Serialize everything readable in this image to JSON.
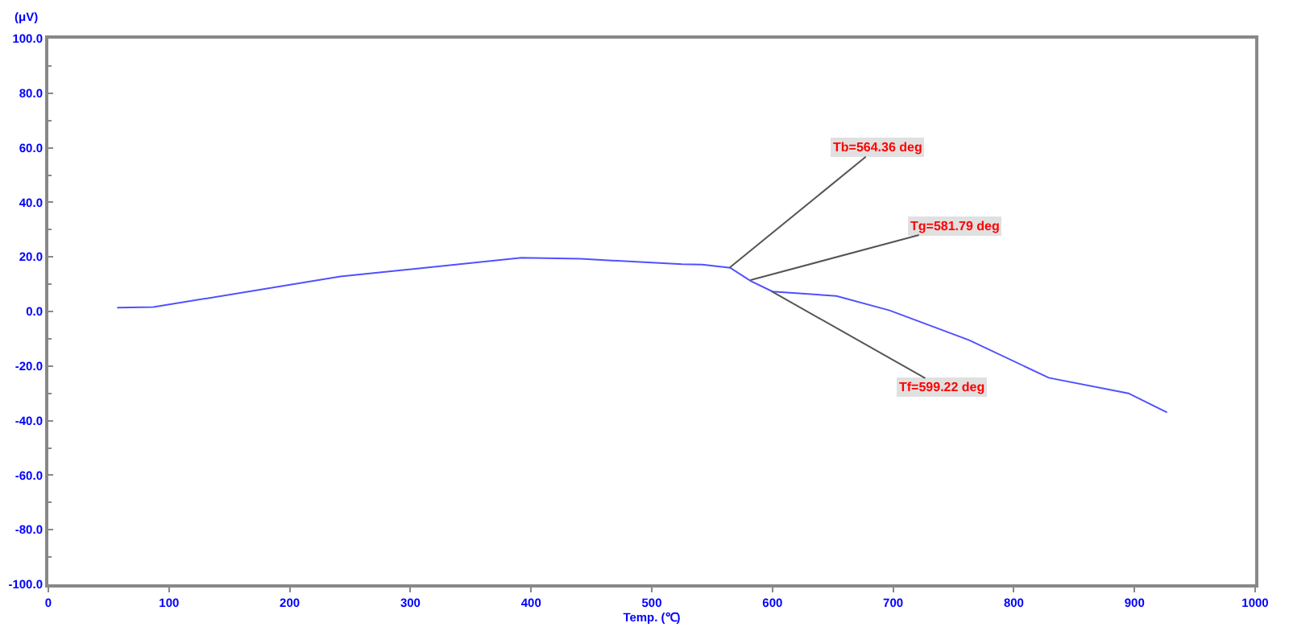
{
  "chart_data": {
    "type": "line",
    "xlabel": "Temp. (℃)",
    "ylabel": "(μV)",
    "x": [
      57,
      87,
      242,
      392,
      441,
      525,
      542,
      565,
      582,
      600,
      653,
      697,
      763,
      829,
      895,
      927
    ],
    "series": [
      {
        "color": "#5050ff",
        "values": [
          1.4,
          1.6,
          12.8,
          19.7,
          19.3,
          17.3,
          17.2,
          16.0,
          11.2,
          7.3,
          5.7,
          0.4,
          -10.5,
          -24.3,
          -30,
          -37
        ]
      }
    ],
    "xlim": [
      0,
      1000
    ],
    "xticks": [
      0,
      100,
      200,
      300,
      400,
      500,
      600,
      700,
      800,
      900,
      1000
    ],
    "ylim": [
      -100,
      100
    ],
    "yticks": [
      {
        "value": -100,
        "label": "-100.0"
      },
      {
        "value": -80,
        "label": "-80.0"
      },
      {
        "value": -60,
        "label": "-60.0"
      },
      {
        "value": -40,
        "label": "-40.0"
      },
      {
        "value": -20,
        "label": "-20.0"
      },
      {
        "value": 0,
        "label": "0.0"
      },
      {
        "value": 20,
        "label": "20.0"
      },
      {
        "value": 40,
        "label": "40.0"
      },
      {
        "value": 60,
        "label": "60.0"
      },
      {
        "value": 80,
        "label": "80.0"
      },
      {
        "value": 100,
        "label": "100.0"
      }
    ],
    "annotations": [
      {
        "text": "Tb=564.36 deg",
        "x": 564.36,
        "y": 16
      },
      {
        "text": "Tg=581.79 deg",
        "x": 581.79,
        "y": 11.5
      },
      {
        "text": "Tf=599.22 deg",
        "x": 599.22,
        "y": 7.4
      }
    ],
    "grid": false,
    "legend": false,
    "marker": "none",
    "line_style": "solid"
  }
}
